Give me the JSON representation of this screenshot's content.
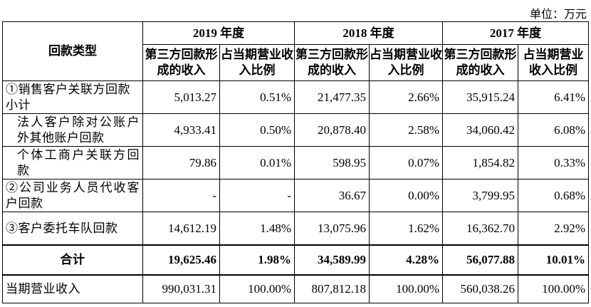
{
  "unit_label": "单位：万元",
  "header": {
    "category_label": "回款类型",
    "years": [
      "2019 年度",
      "2018 年度",
      "2017 年度"
    ],
    "col_amount": "第三方回款形成的收入",
    "col_ratio": "占当期营业收入比例"
  },
  "rows": [
    {
      "label": "①销售客户关联方回款小计",
      "values": [
        "5,013.27",
        "0.51%",
        "21,477.35",
        "2.66%",
        "35,915.24",
        "6.41%"
      ]
    },
    {
      "label": "法人客户除对公账户外其他账户回款",
      "values": [
        "4,933.41",
        "0.50%",
        "20,878.40",
        "2.58%",
        "34,060.42",
        "6.08%"
      ]
    },
    {
      "label": "个体工商户关联方回款",
      "values": [
        "79.86",
        "0.01%",
        "598.95",
        "0.07%",
        "1,854.82",
        "0.33%"
      ]
    },
    {
      "label": "②公司业务人员代收客户回款",
      "values": [
        "-",
        "-",
        "36.67",
        "0.00%",
        "3,799.95",
        "0.68%"
      ]
    },
    {
      "label": "③客户委托车队回款",
      "values": [
        "14,612.19",
        "1.48%",
        "13,075.96",
        "1.62%",
        "16,362.70",
        "2.92%"
      ]
    },
    {
      "label": "合计",
      "values": [
        "19,625.46",
        "1.98%",
        "34,589.99",
        "4.28%",
        "56,077.88",
        "10.01%"
      ]
    },
    {
      "label": "当期营业收入",
      "values": [
        "990,031.31",
        "100.00%",
        "807,812.18",
        "100.00%",
        "560,038.26",
        "100.00%"
      ]
    }
  ]
}
